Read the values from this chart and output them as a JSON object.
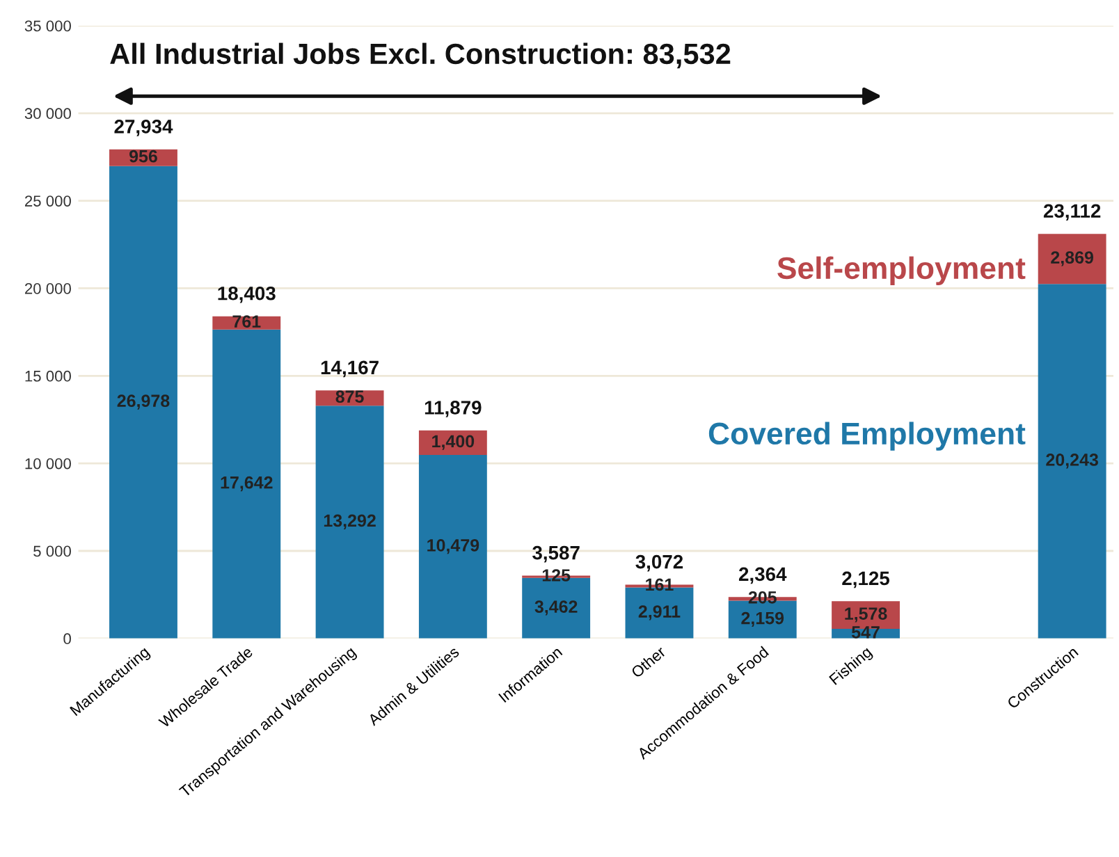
{
  "chart_data": {
    "type": "bar",
    "stacked": true,
    "categories": [
      "Manufacturing",
      "Wholesale Trade",
      "Transportation and Warehousing",
      "Admin & Utilities",
      "Information",
      "Other",
      "Accommodation & Food",
      "Fishing",
      null,
      "Construction"
    ],
    "series": [
      {
        "name": "Covered Employment",
        "color": "#1f78a8",
        "values": [
          26978,
          17642,
          13292,
          10479,
          3462,
          2911,
          2159,
          547,
          null,
          20243
        ],
        "value_labels": [
          "26,978",
          "17,642",
          "13,292",
          "10,479",
          "3,462",
          "2,911",
          "2,159",
          "547",
          null,
          "20,243"
        ]
      },
      {
        "name": "Self-employment",
        "color": "#b9474a",
        "values": [
          956,
          761,
          875,
          1400,
          125,
          161,
          205,
          1578,
          null,
          2869
        ],
        "value_labels": [
          "956",
          "761",
          "875",
          "1,400",
          "125",
          "161",
          "205",
          "1,578",
          null,
          "2,869"
        ]
      }
    ],
    "totals": [
      "27,934",
      "18,403",
      "14,167",
      "11,879",
      "3,587",
      "3,072",
      "2,364",
      "2,125",
      null,
      "23,112"
    ],
    "ylim": [
      0,
      35000
    ],
    "yticks": [
      0,
      {
        "value": 5000,
        "label": "5 000"
      },
      {
        "value": 10000,
        "label": "10 000"
      },
      {
        "value": 15000,
        "label": "15 000"
      },
      {
        "value": 20000,
        "label": "20 000"
      },
      {
        "value": 25000,
        "label": "25 000"
      },
      {
        "value": 30000,
        "label": "30 000"
      },
      {
        "value": 35000,
        "label": "35 000"
      }
    ],
    "grid": "y",
    "legend": false,
    "annotations": [
      "All Industrial Jobs Excl. Construction: 83,532"
    ]
  }
}
